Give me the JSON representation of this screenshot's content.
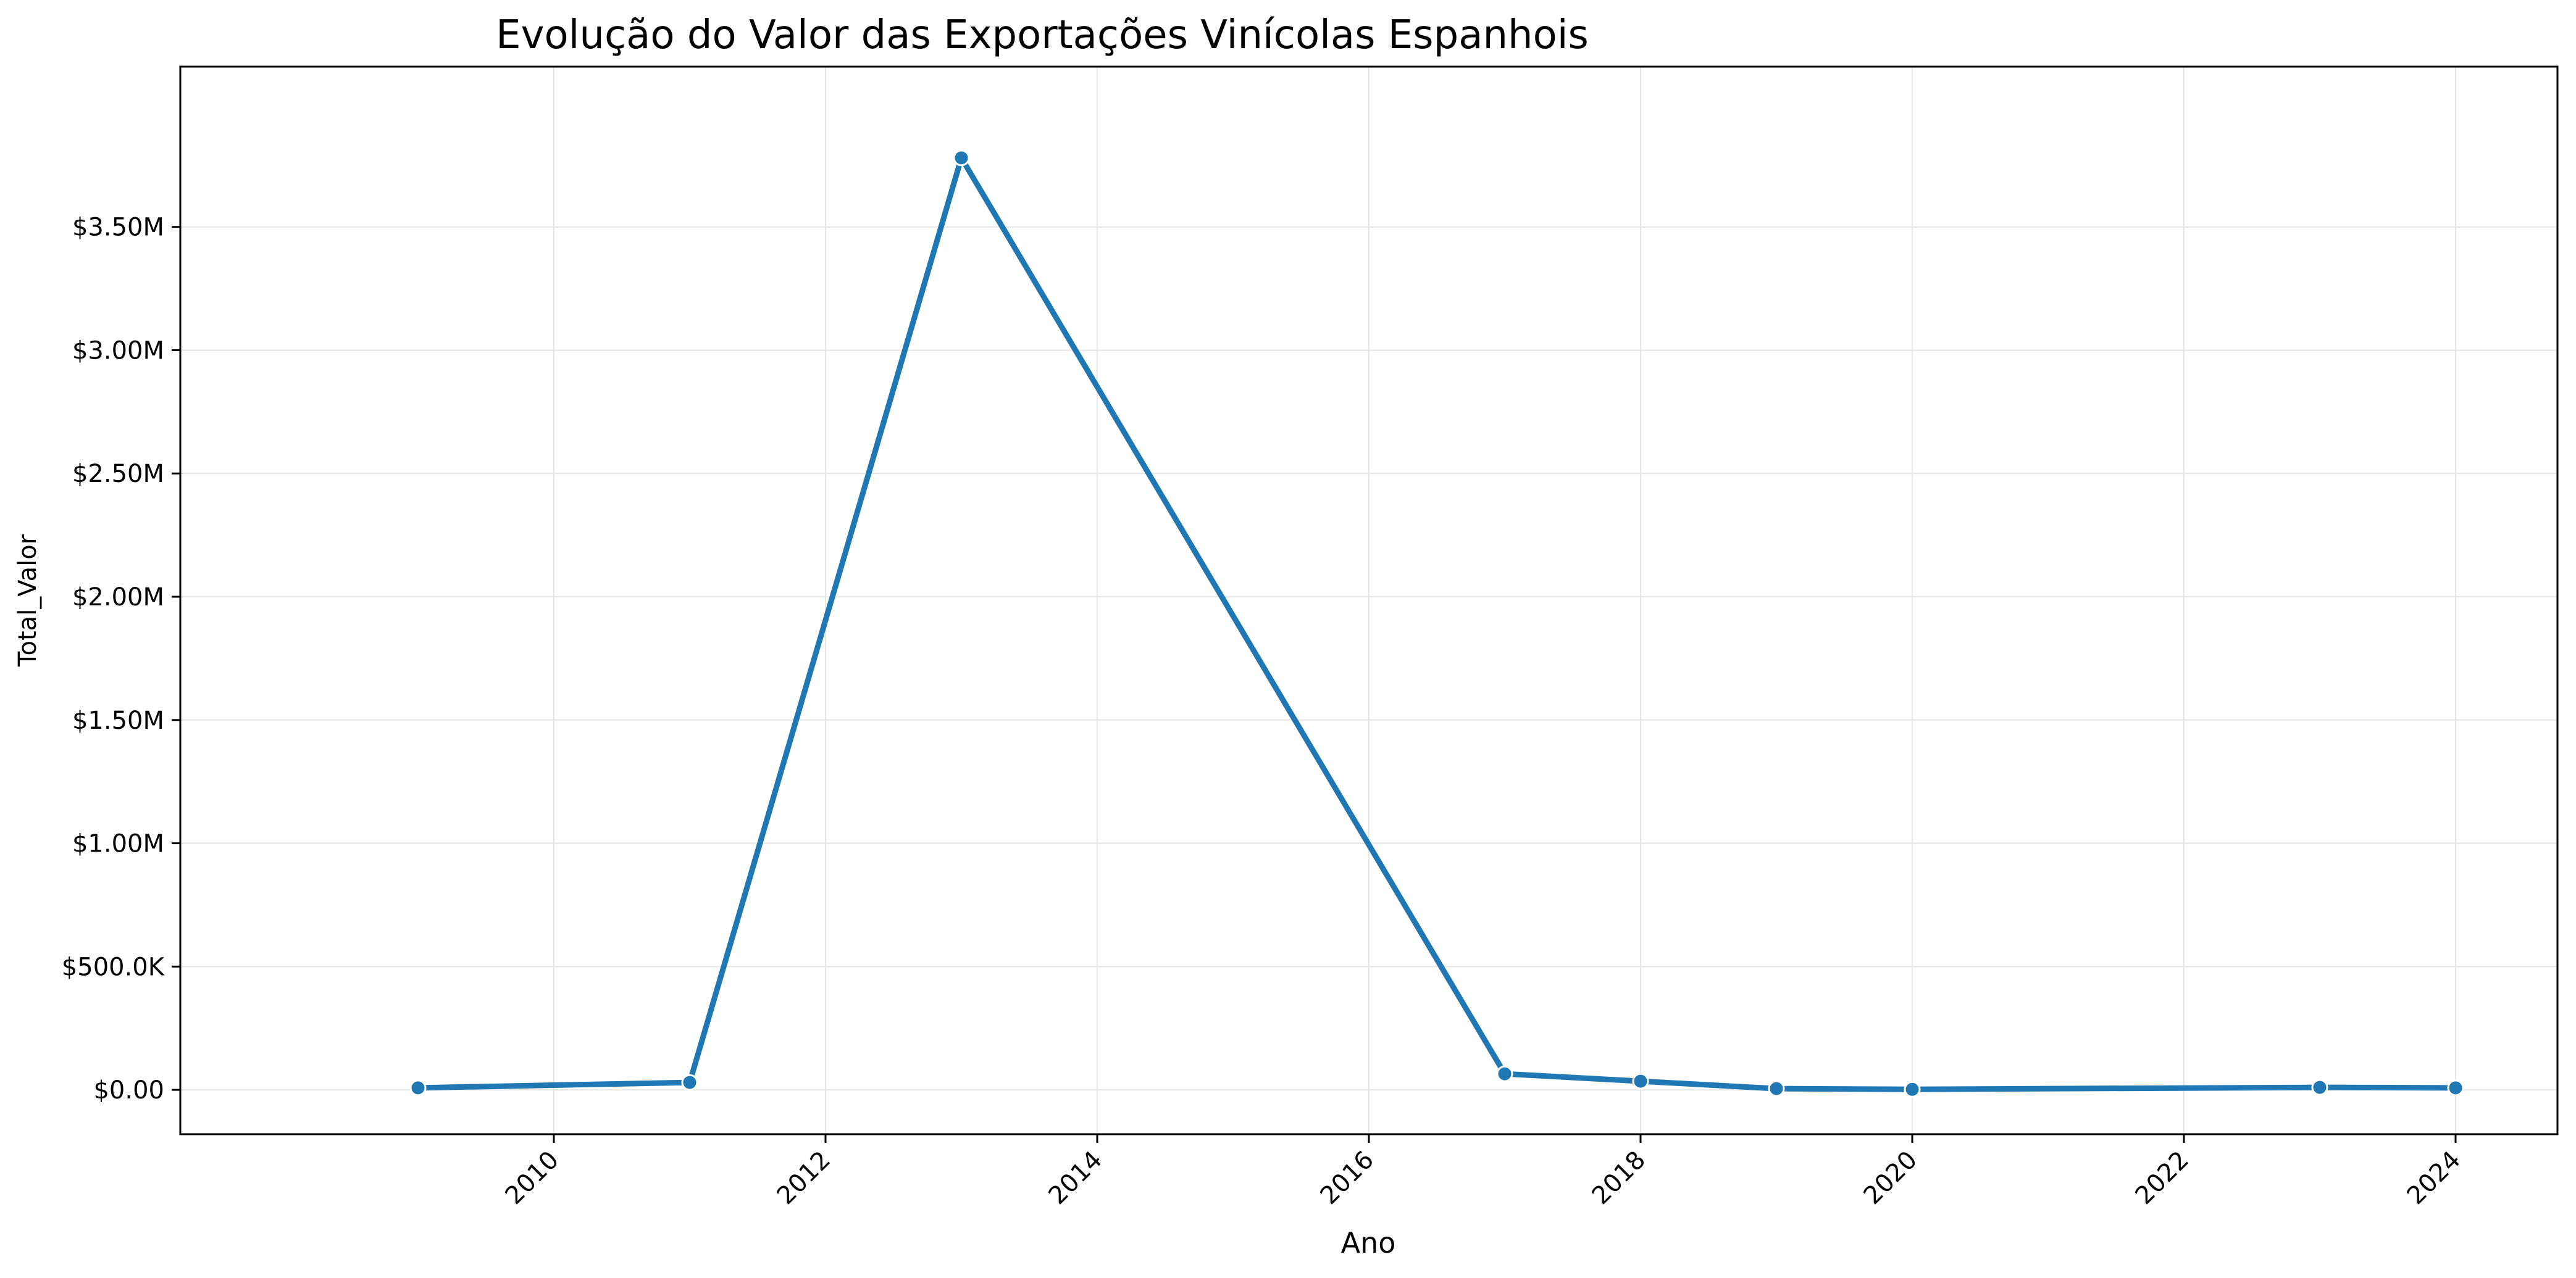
{
  "chart_data": {
    "type": "line",
    "title": "Evolução do Valor das Exportações Vinícolas Espanhois",
    "xlabel": "Ano",
    "ylabel": "Total_Valor",
    "x": [
      2009,
      2011,
      2013,
      2017,
      2018,
      2019,
      2020,
      2023,
      2024
    ],
    "series": [
      {
        "values": [
          8000,
          30000,
          3780000,
          65000,
          35000,
          5000,
          2000,
          10000,
          8000
        ]
      }
    ],
    "xlim": [
      2007.25,
      2024.75
    ],
    "ylim": [
      -180000,
      4150000
    ],
    "xticks": [
      {
        "value": 2010,
        "label": "2010"
      },
      {
        "value": 2012,
        "label": "2012"
      },
      {
        "value": 2014,
        "label": "2014"
      },
      {
        "value": 2016,
        "label": "2016"
      },
      {
        "value": 2018,
        "label": "2018"
      },
      {
        "value": 2020,
        "label": "2020"
      },
      {
        "value": 2022,
        "label": "2022"
      },
      {
        "value": 2024,
        "label": "2024"
      }
    ],
    "yticks": [
      {
        "value": 0,
        "label": "$0.00"
      },
      {
        "value": 500000,
        "label": "$500.0K"
      },
      {
        "value": 1000000,
        "label": "$1.00M"
      },
      {
        "value": 1500000,
        "label": "$1.50M"
      },
      {
        "value": 2000000,
        "label": "$2.00M"
      },
      {
        "value": 2500000,
        "label": "$2.50M"
      },
      {
        "value": 3000000,
        "label": "$3.00M"
      },
      {
        "value": 3500000,
        "label": "$3.50M"
      }
    ],
    "grid": true,
    "x_tick_rotation_deg": 45,
    "colors": {
      "line": "#1f77b4",
      "marker_edge": "#ffffff",
      "grid": "#e6e6e6",
      "axes": "#000000"
    }
  }
}
